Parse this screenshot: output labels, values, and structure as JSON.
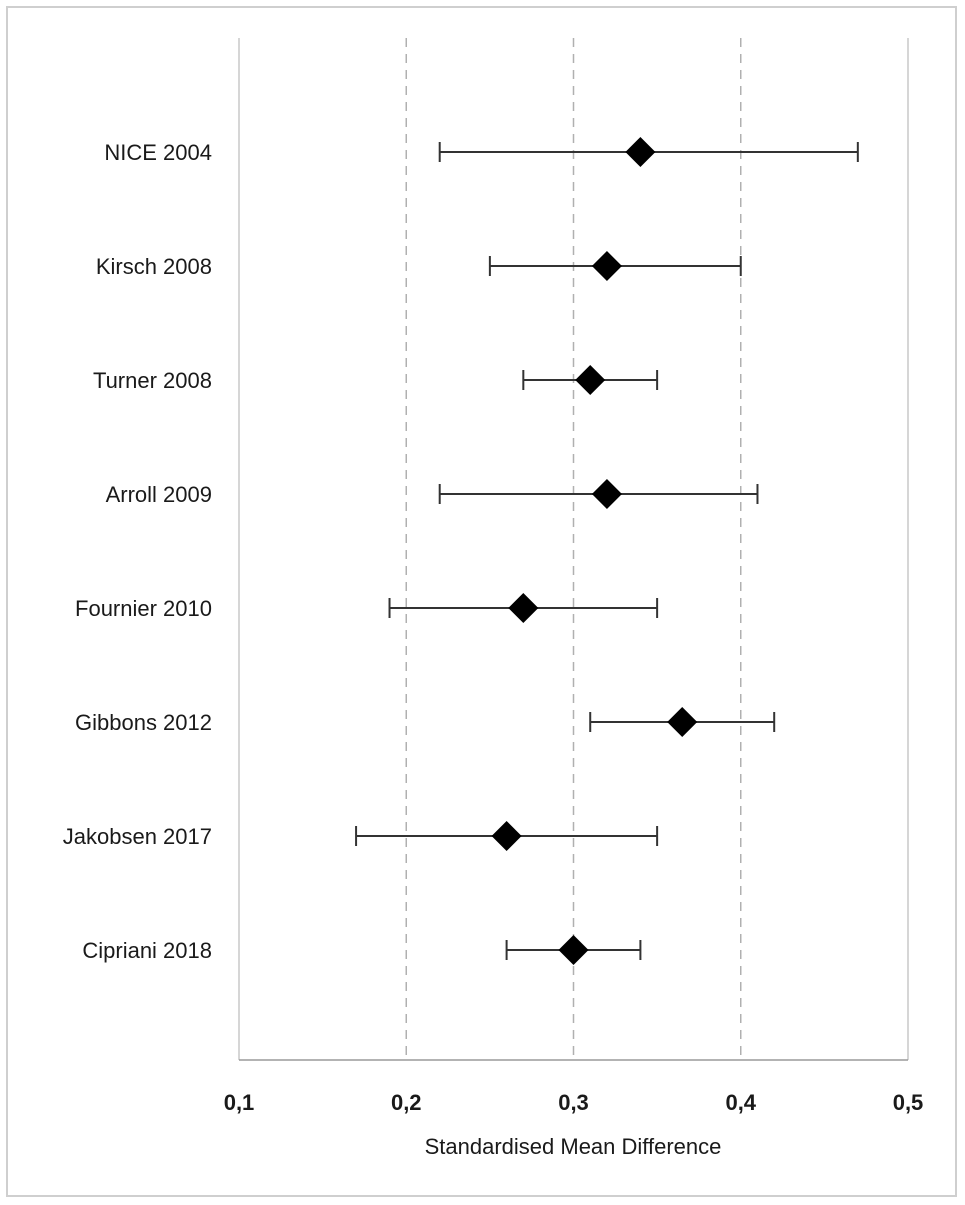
{
  "chart_data": {
    "type": "forest",
    "xlabel": "Standardised Mean Difference",
    "ylabel": "",
    "xlim": [
      0.1,
      0.5
    ],
    "x_ticks": [
      0.1,
      0.2,
      0.3,
      0.4,
      0.5
    ],
    "x_tick_labels": [
      "0,1",
      "0,2",
      "0,3",
      "0,4",
      "0,5"
    ],
    "grid": "vertical dashed at 0.2, 0.3, 0.4",
    "categories": [
      "NICE 2004",
      "Kirsch 2008",
      "Turner 2008",
      "Arroll 2009",
      "Fournier 2010",
      "Gibbons 2012",
      "Jakobsen 2017",
      "Cipriani 2018"
    ],
    "estimates": [
      0.34,
      0.32,
      0.31,
      0.32,
      0.27,
      0.365,
      0.26,
      0.3
    ],
    "ci_lower": [
      0.22,
      0.25,
      0.27,
      0.22,
      0.19,
      0.31,
      0.17,
      0.26
    ],
    "ci_upper": [
      0.47,
      0.4,
      0.35,
      0.41,
      0.35,
      0.42,
      0.35,
      0.34
    ],
    "marker_color": "#000000",
    "line_color": "#333333",
    "grid_color": "#b0b0b0"
  }
}
